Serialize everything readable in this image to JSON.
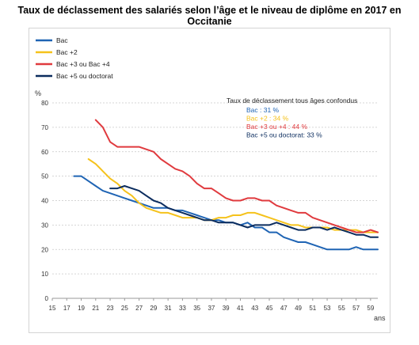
{
  "title": "Taux de déclassement des salariés selon l’âge et le niveau de diplôme en 2017 en Occitanie",
  "chart_data": {
    "type": "line",
    "title": "Taux de déclassement des salariés selon l’âge et le niveau de diplôme en 2017 en Occitanie",
    "xlabel": "ans",
    "ylabel": "%",
    "xlim": [
      15,
      60
    ],
    "ylim": [
      0,
      80
    ],
    "x_ticks": [
      "15",
      "17",
      "19",
      "21",
      "23",
      "25",
      "27",
      "29",
      "31",
      "33",
      "35",
      "37",
      "39",
      "41",
      "43",
      "45",
      "47",
      "49",
      "51",
      "53",
      "55",
      "57",
      "59"
    ],
    "y_ticks": [
      "0",
      "10",
      "20",
      "30",
      "40",
      "50",
      "60",
      "70",
      "80"
    ],
    "grid": true,
    "legend_position": "top-left",
    "series": [
      {
        "name": "Bac",
        "color": "#1f64b4",
        "x": [
          18,
          19,
          20,
          21,
          22,
          23,
          24,
          25,
          26,
          27,
          28,
          29,
          30,
          31,
          32,
          33,
          34,
          35,
          36,
          37,
          38,
          39,
          40,
          41,
          42,
          43,
          44,
          45,
          46,
          47,
          48,
          49,
          50,
          51,
          52,
          53,
          54,
          55,
          56,
          57,
          58,
          59,
          60
        ],
        "y": [
          50,
          50,
          48,
          46,
          44,
          43,
          42,
          41,
          40,
          39,
          38,
          37,
          37,
          37,
          36,
          36,
          35,
          34,
          33,
          32,
          32,
          31,
          31,
          30,
          31,
          29,
          29,
          27,
          27,
          25,
          24,
          23,
          23,
          22,
          21,
          20,
          20,
          20,
          20,
          21,
          20,
          20,
          20
        ]
      },
      {
        "name": "Bac +2",
        "color": "#f5c21b",
        "x": [
          20,
          21,
          22,
          23,
          24,
          25,
          26,
          27,
          28,
          29,
          30,
          31,
          32,
          33,
          34,
          35,
          36,
          37,
          38,
          39,
          40,
          41,
          42,
          43,
          44,
          45,
          46,
          47,
          48,
          49,
          50,
          51,
          52,
          53,
          54,
          55,
          56,
          57,
          58,
          59,
          60
        ],
        "y": [
          57,
          55,
          52,
          49,
          47,
          44,
          42,
          39,
          37,
          36,
          35,
          35,
          34,
          33,
          33,
          33,
          32,
          32,
          33,
          33,
          34,
          34,
          35,
          35,
          34,
          33,
          32,
          31,
          30,
          30,
          29,
          29,
          29,
          29,
          28,
          28,
          28,
          28,
          27,
          27,
          27
        ]
      },
      {
        "name": "Bac +3 ou Bac +4",
        "color": "#e03a3e",
        "x": [
          21,
          22,
          23,
          24,
          25,
          26,
          27,
          28,
          29,
          30,
          31,
          32,
          33,
          34,
          35,
          36,
          37,
          38,
          39,
          40,
          41,
          42,
          43,
          44,
          45,
          46,
          47,
          48,
          49,
          50,
          51,
          52,
          53,
          54,
          55,
          56,
          57,
          58,
          59,
          60
        ],
        "y": [
          73,
          70,
          64,
          62,
          62,
          62,
          62,
          61,
          60,
          57,
          55,
          53,
          52,
          50,
          47,
          45,
          45,
          43,
          41,
          40,
          40,
          41,
          41,
          40,
          40,
          38,
          37,
          36,
          35,
          35,
          33,
          32,
          31,
          30,
          29,
          28,
          27,
          27,
          28,
          27
        ]
      },
      {
        "name": "Bac +5 ou doctorat",
        "color": "#0b2c5e",
        "x": [
          23,
          24,
          25,
          26,
          27,
          28,
          29,
          30,
          31,
          32,
          33,
          34,
          35,
          36,
          37,
          38,
          39,
          40,
          41,
          42,
          43,
          44,
          45,
          46,
          47,
          48,
          49,
          50,
          51,
          52,
          53,
          54,
          55,
          56,
          57,
          58,
          59,
          60
        ],
        "y": [
          45,
          45,
          46,
          45,
          44,
          42,
          40,
          39,
          37,
          36,
          35,
          34,
          33,
          32,
          32,
          31,
          31,
          31,
          30,
          29,
          30,
          30,
          30,
          31,
          30,
          29,
          28,
          28,
          29,
          29,
          28,
          29,
          28,
          27,
          26,
          26,
          25,
          25
        ]
      }
    ],
    "annotation": {
      "heading": "Taux de déclassement tous âges confondus",
      "lines": [
        {
          "text": "Bac : 31 %",
          "color": "#1f64b4"
        },
        {
          "text": "Bac +2 : 34 %",
          "color": "#f5c21b"
        },
        {
          "text": "Bac +3 ou +4 : 44 %",
          "color": "#e03a3e"
        },
        {
          "text": "Bac +5 ou doctorat: 33 %",
          "color": "#0b2c5e"
        }
      ]
    }
  }
}
